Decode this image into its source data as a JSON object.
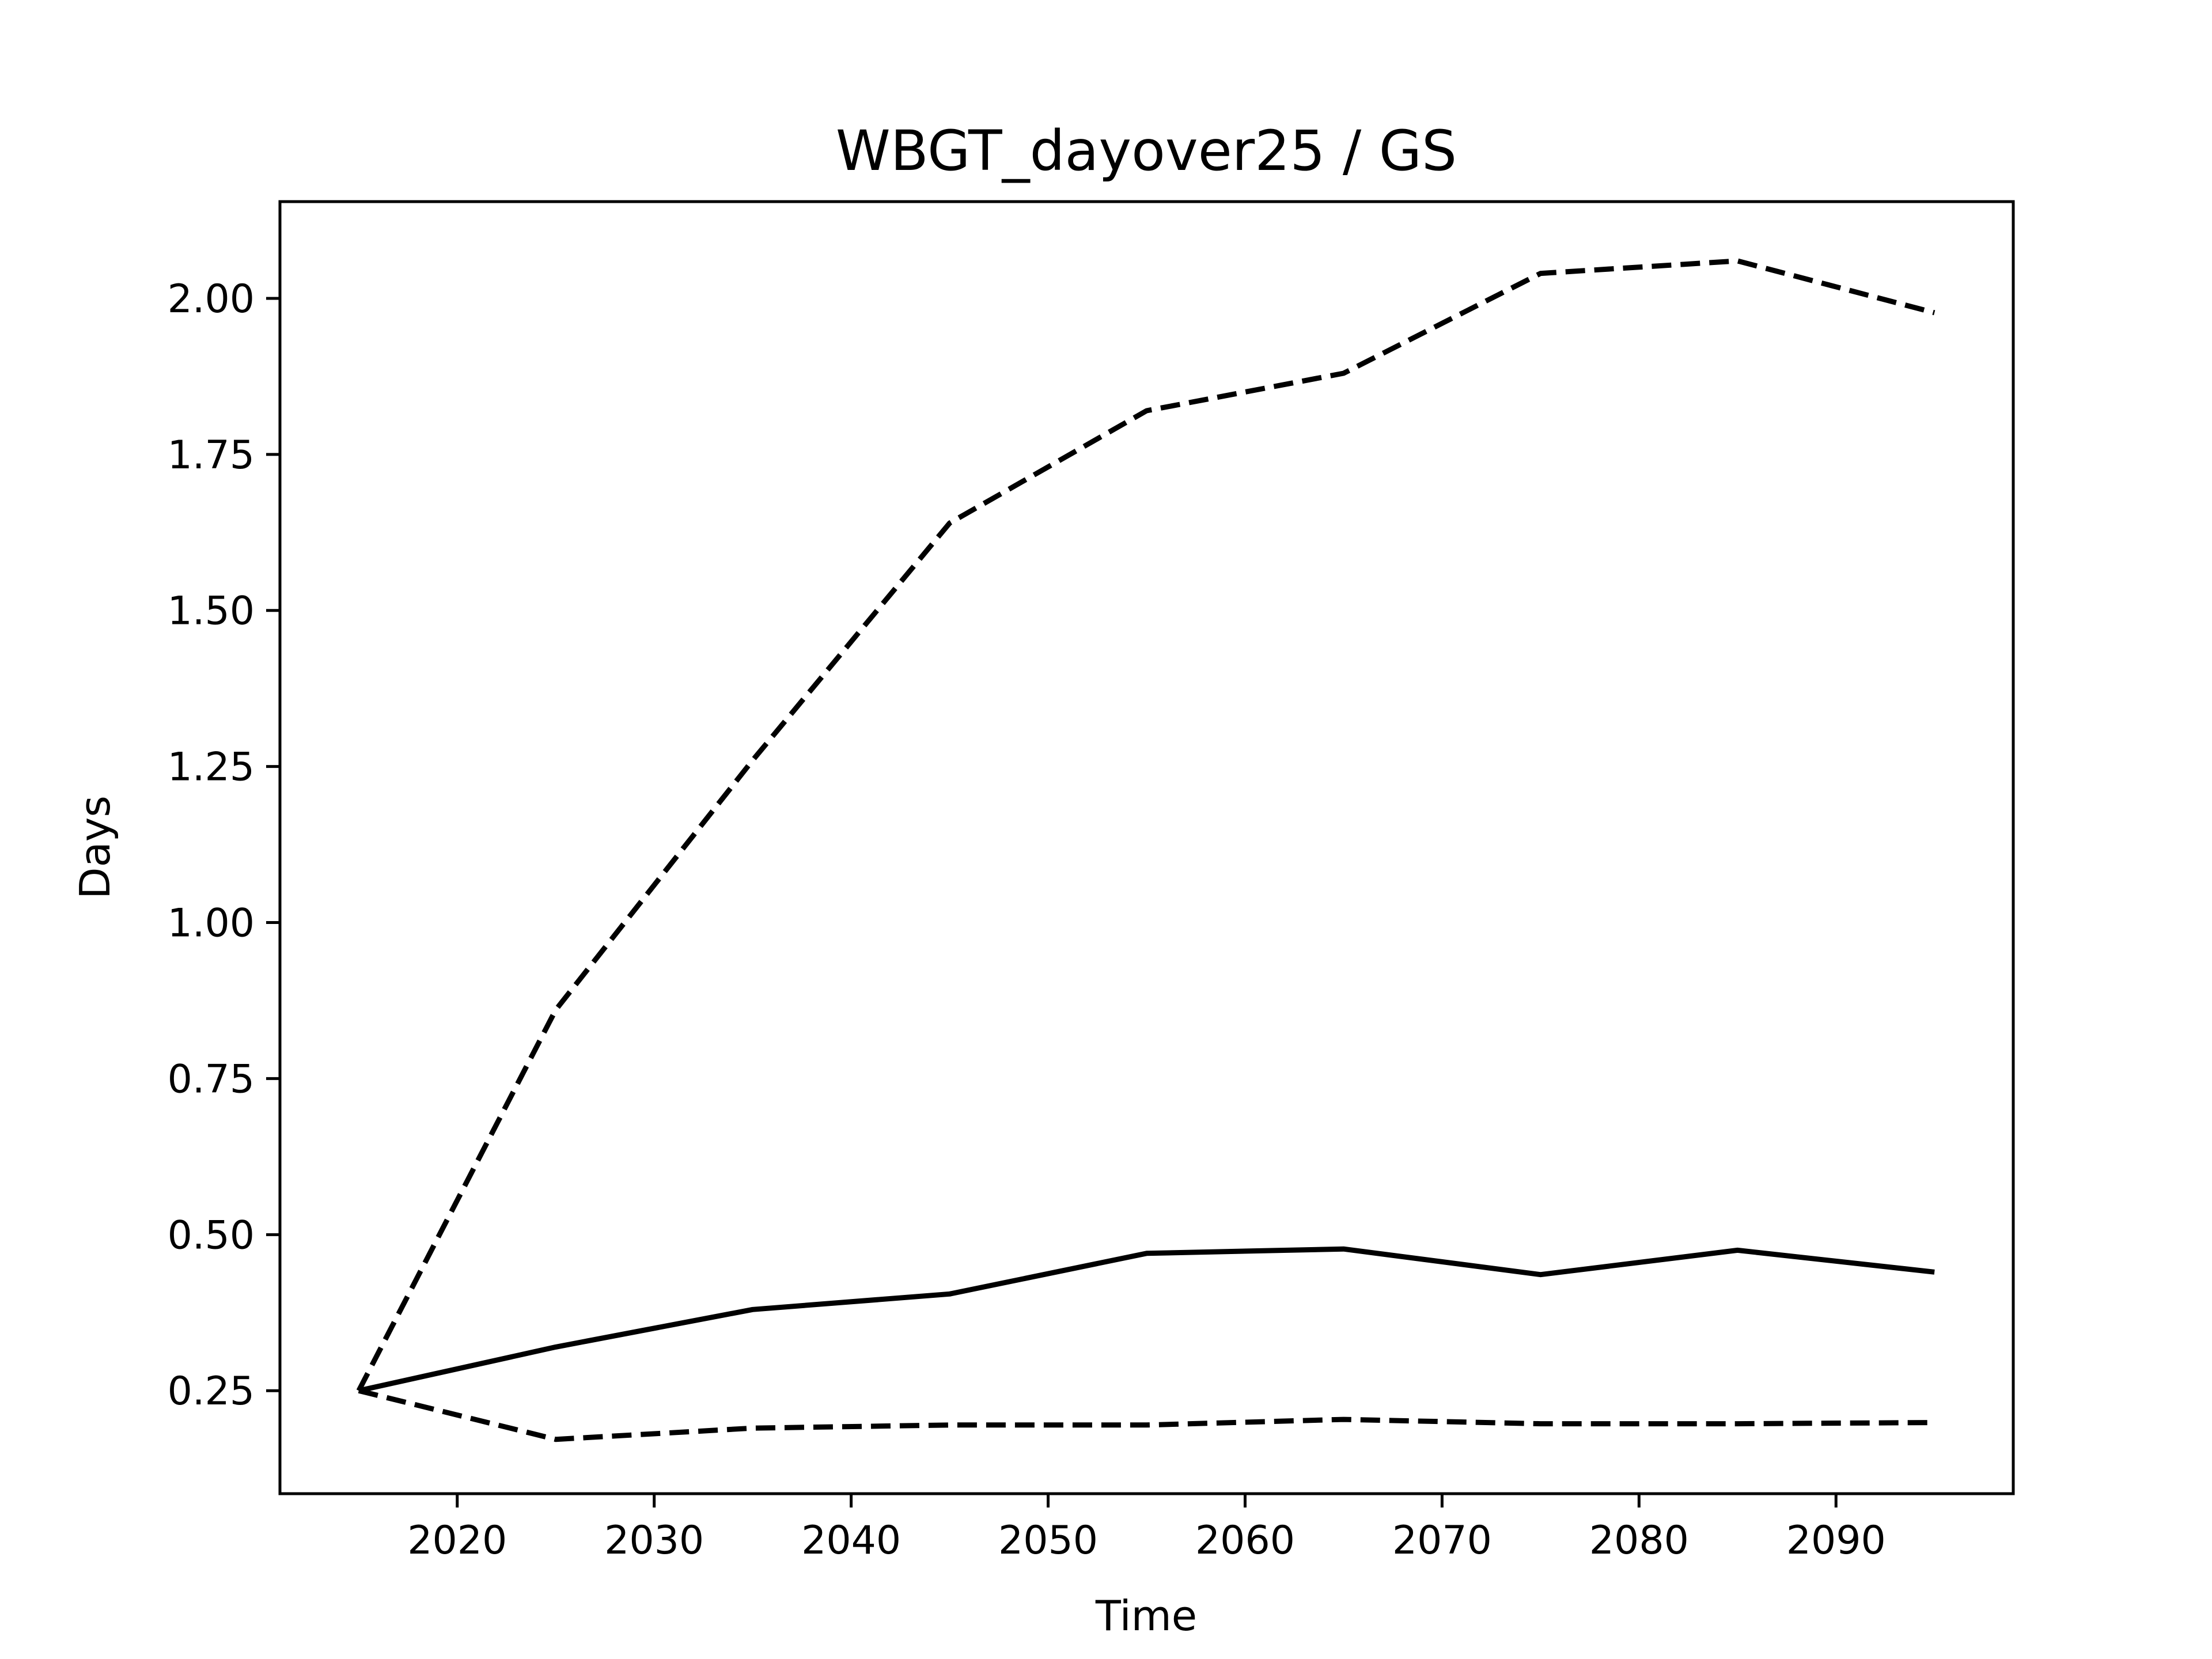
{
  "chart_data": {
    "type": "line",
    "title": "WBGT_dayover25 / GS",
    "xlabel": "Time",
    "ylabel": "Days",
    "xlim": [
      2011,
      2099
    ],
    "ylim": [
      0.085,
      2.155
    ],
    "xticks": [
      2020,
      2030,
      2040,
      2050,
      2060,
      2070,
      2080,
      2090
    ],
    "yticks": [
      0.25,
      0.5,
      0.75,
      1.0,
      1.25,
      1.5,
      1.75,
      2.0
    ],
    "ytick_labels": [
      "0.25",
      "0.50",
      "0.75",
      "1.00",
      "1.25",
      "1.50",
      "1.75",
      "2.00"
    ],
    "grid": false,
    "series": [
      {
        "style": "solid",
        "color": "#000000",
        "x": [
          2015,
          2025,
          2035,
          2045,
          2055,
          2065,
          2075,
          2085,
          2095
        ],
        "y": [
          0.25,
          0.32,
          0.38,
          0.405,
          0.47,
          0.477,
          0.436,
          0.475,
          0.44
        ]
      },
      {
        "style": "dashed",
        "color": "#000000",
        "x": [
          2015,
          2025,
          2035,
          2045,
          2055,
          2065,
          2075,
          2085,
          2095
        ],
        "y": [
          0.25,
          0.86,
          1.26,
          1.64,
          1.82,
          1.88,
          2.04,
          2.06,
          1.977
        ]
      },
      {
        "style": "dashed",
        "color": "#000000",
        "x": [
          2015,
          2025,
          2035,
          2045,
          2055,
          2065,
          2075,
          2085,
          2095
        ],
        "y": [
          0.25,
          0.172,
          0.19,
          0.195,
          0.195,
          0.204,
          0.197,
          0.197,
          0.199
        ]
      }
    ]
  }
}
